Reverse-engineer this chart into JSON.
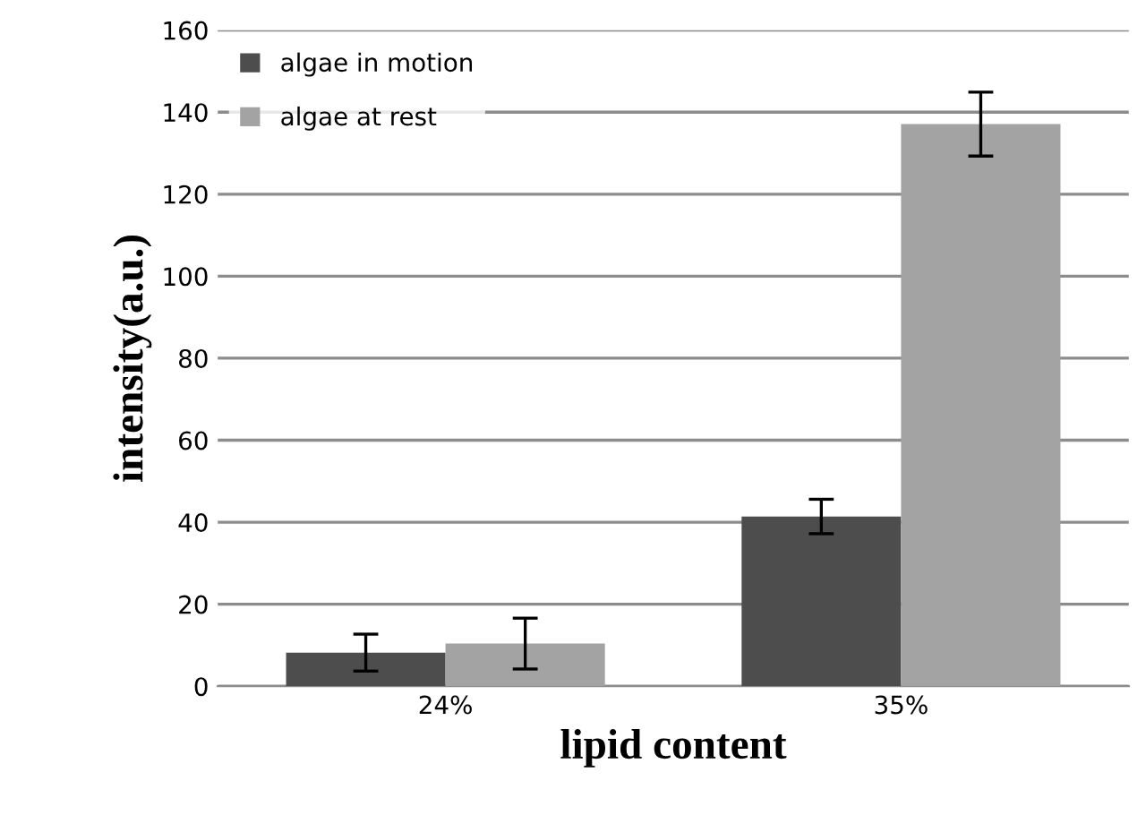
{
  "chart_data": {
    "type": "bar",
    "xlabel": "lipid content",
    "ylabel": "intensity(a.u.)",
    "categories": [
      "24%",
      "35%"
    ],
    "series": [
      {
        "name": "algae in motion",
        "color": "#4d4d4d",
        "values": [
          8.2,
          41.4
        ],
        "errors": [
          4.5,
          4.2
        ]
      },
      {
        "name": "algae at rest",
        "color": "#a3a3a3",
        "values": [
          10.4,
          137.1
        ],
        "errors": [
          6.2,
          7.8
        ]
      }
    ],
    "ylim": [
      0,
      160
    ],
    "yticks": [
      0,
      20,
      40,
      60,
      80,
      100,
      120,
      140,
      160
    ],
    "grid": "y",
    "legend": "top left"
  }
}
